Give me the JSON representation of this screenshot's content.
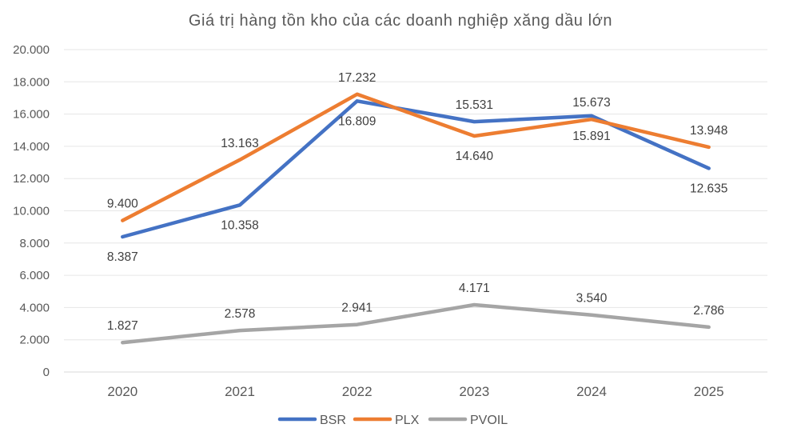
{
  "chart_data": {
    "type": "line",
    "title": "Giá trị hàng tồn kho của các doanh nghiệp xăng dầu lớn",
    "xlabel": "",
    "ylabel": "",
    "categories": [
      "2020",
      "2021",
      "2022",
      "2023",
      "2024",
      "2025"
    ],
    "ylim": [
      0,
      20000
    ],
    "yticks": [
      0,
      2000,
      4000,
      6000,
      8000,
      10000,
      12000,
      14000,
      16000,
      18000,
      20000
    ],
    "ytick_labels": [
      "0",
      "2.000",
      "4.000",
      "6.000",
      "8.000",
      "10.000",
      "12.000",
      "14.000",
      "16.000",
      "18.000",
      "20.000"
    ],
    "grid": true,
    "legend": "bottom",
    "series": [
      {
        "name": "BSR",
        "color": "#4472C4",
        "values": [
          8387,
          10358,
          16809,
          15531,
          15891,
          12635
        ],
        "labels": [
          "8.387",
          "10.358",
          "16.809",
          "15.531",
          "15.891",
          "12.635"
        ],
        "label_pos": [
          "below",
          "below",
          "below",
          "above",
          "below",
          "below"
        ]
      },
      {
        "name": "PLX",
        "color": "#ED7D31",
        "values": [
          9400,
          13163,
          17232,
          14640,
          15673,
          13948
        ],
        "labels": [
          "9.400",
          "13.163",
          "17.232",
          "14.640",
          "15.673",
          "13.948"
        ],
        "label_pos": [
          "above",
          "above",
          "above",
          "below",
          "above",
          "above"
        ]
      },
      {
        "name": "PVOIL",
        "color": "#A5A5A5",
        "values": [
          1827,
          2578,
          2941,
          4171,
          3540,
          2786
        ],
        "labels": [
          "1.827",
          "2.578",
          "2.941",
          "4.171",
          "3.540",
          "2.786"
        ],
        "label_pos": [
          "above",
          "above",
          "above",
          "above",
          "above",
          "above"
        ]
      }
    ]
  }
}
